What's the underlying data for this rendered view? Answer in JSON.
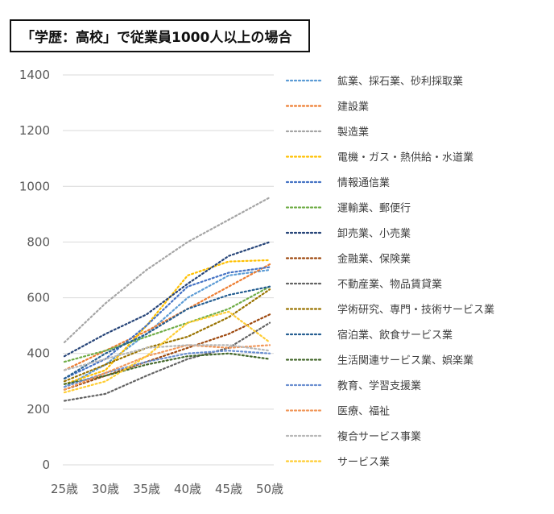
{
  "chart_data": {
    "type": "line",
    "title": "「学歴：高校」で従業員1000人以上の場合",
    "xlabel": "",
    "ylabel": "",
    "categories": [
      "25歳",
      "30歳",
      "35歳",
      "40歳",
      "45歳",
      "50歳"
    ],
    "yticks": [
      "0",
      "200",
      "400",
      "600",
      "800",
      "1000",
      "1200",
      "1400"
    ],
    "ylim": [
      0,
      1400
    ],
    "line_style": "dotted",
    "legend_position": "right",
    "series": [
      {
        "name": "鉱業、採石業、砂利採取業",
        "color": "#5B9BD5",
        "values": [
          280,
          360,
          470,
          600,
          680,
          700
        ]
      },
      {
        "name": "建設業",
        "color": "#ED7D31",
        "values": [
          340,
          410,
          480,
          560,
          640,
          720
        ]
      },
      {
        "name": "製造業",
        "color": "#A5A5A5",
        "values": [
          440,
          580,
          700,
          800,
          880,
          960
        ]
      },
      {
        "name": "電機・ガス・熱供給・水道業",
        "color": "#FFC000",
        "values": [
          290,
          340,
          500,
          680,
          730,
          735
        ]
      },
      {
        "name": "情報通信業",
        "color": "#4472C4",
        "values": [
          310,
          380,
          500,
          640,
          690,
          710
        ]
      },
      {
        "name": "運輸業、郵便行",
        "color": "#70AD47",
        "values": [
          370,
          410,
          460,
          510,
          560,
          640
        ]
      },
      {
        "name": "卸売業、小売業",
        "color": "#264478",
        "values": [
          390,
          470,
          540,
          650,
          750,
          800
        ]
      },
      {
        "name": "金融業、保険業",
        "color": "#9E480E",
        "values": [
          270,
          320,
          370,
          420,
          470,
          540
        ]
      },
      {
        "name": "不動産業、物品賃貸業",
        "color": "#636363",
        "values": [
          230,
          255,
          320,
          380,
          420,
          510
        ]
      },
      {
        "name": "学術研究、専門・技術サービス業",
        "color": "#997300",
        "values": [
          300,
          360,
          420,
          460,
          530,
          630
        ]
      },
      {
        "name": "宿泊業、飲食サービス業",
        "color": "#255E91",
        "values": [
          310,
          400,
          470,
          560,
          610,
          640
        ]
      },
      {
        "name": "生活関連サービス業、娯楽業",
        "color": "#43682B",
        "values": [
          290,
          320,
          360,
          390,
          400,
          380
        ]
      },
      {
        "name": "教育、学習支援業",
        "color": "#698ED0",
        "values": [
          280,
          330,
          370,
          400,
          410,
          400
        ]
      },
      {
        "name": "医療、福祉",
        "color": "#F1975A",
        "values": [
          270,
          330,
          390,
          430,
          420,
          430
        ]
      },
      {
        "name": "複合サービス事業",
        "color": "#B7B7B7",
        "values": [
          340,
          380,
          420,
          430,
          430,
          410
        ]
      },
      {
        "name": "サービス業",
        "color": "#FFCD33",
        "values": [
          260,
          300,
          390,
          510,
          550,
          440
        ]
      }
    ]
  }
}
